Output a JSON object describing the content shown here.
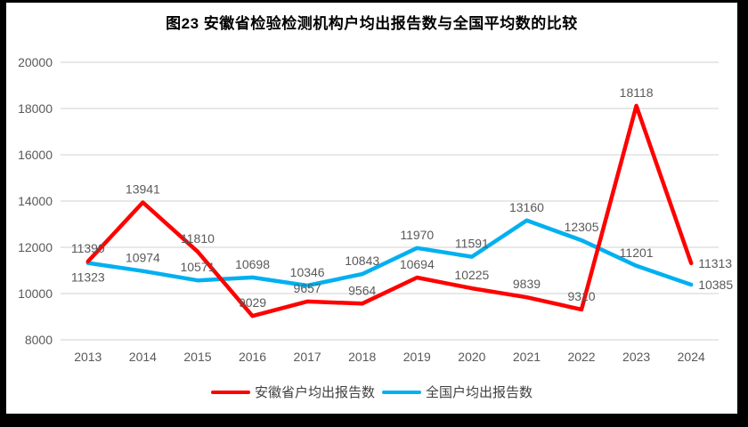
{
  "chart_data": {
    "type": "line",
    "title": "图23 安徽省检验检测机构户均出报告数与全国平均数的比较",
    "categories": [
      "2013",
      "2014",
      "2015",
      "2016",
      "2017",
      "2018",
      "2019",
      "2020",
      "2021",
      "2022",
      "2023",
      "2024"
    ],
    "series": [
      {
        "name": "安徽省户均出报告数",
        "color": "#FF0000",
        "values": [
          11390,
          13941,
          11810,
          9029,
          9657,
          9564,
          10694,
          10225,
          9839,
          9310,
          18118,
          11313
        ],
        "label_positions": [
          "above",
          "above",
          "above",
          "above",
          "above",
          "above",
          "above",
          "above",
          "above",
          "above",
          "above",
          "right"
        ]
      },
      {
        "name": "全国户均出报告数",
        "color": "#00B0F0",
        "values": [
          11323,
          10974,
          10571,
          10698,
          10346,
          10843,
          11970,
          11591,
          13160,
          12305,
          11201,
          10385
        ],
        "label_positions": [
          "below",
          "above",
          "above",
          "above",
          "above",
          "above",
          "above",
          "above",
          "above",
          "above",
          "above",
          "right"
        ]
      }
    ],
    "ylim": [
      8000,
      20000
    ],
    "yticks": [
      8000,
      10000,
      12000,
      14000,
      16000,
      18000,
      20000
    ],
    "grid": true,
    "legend_position": "bottom",
    "colors": {
      "gridline": "#D9D9D9",
      "axis_label_text": "#595959",
      "data_label_text": "#595959",
      "legend_text": "#404040",
      "title_text": "#000000",
      "frame": "#000000",
      "background": "#FFFFFF"
    }
  }
}
